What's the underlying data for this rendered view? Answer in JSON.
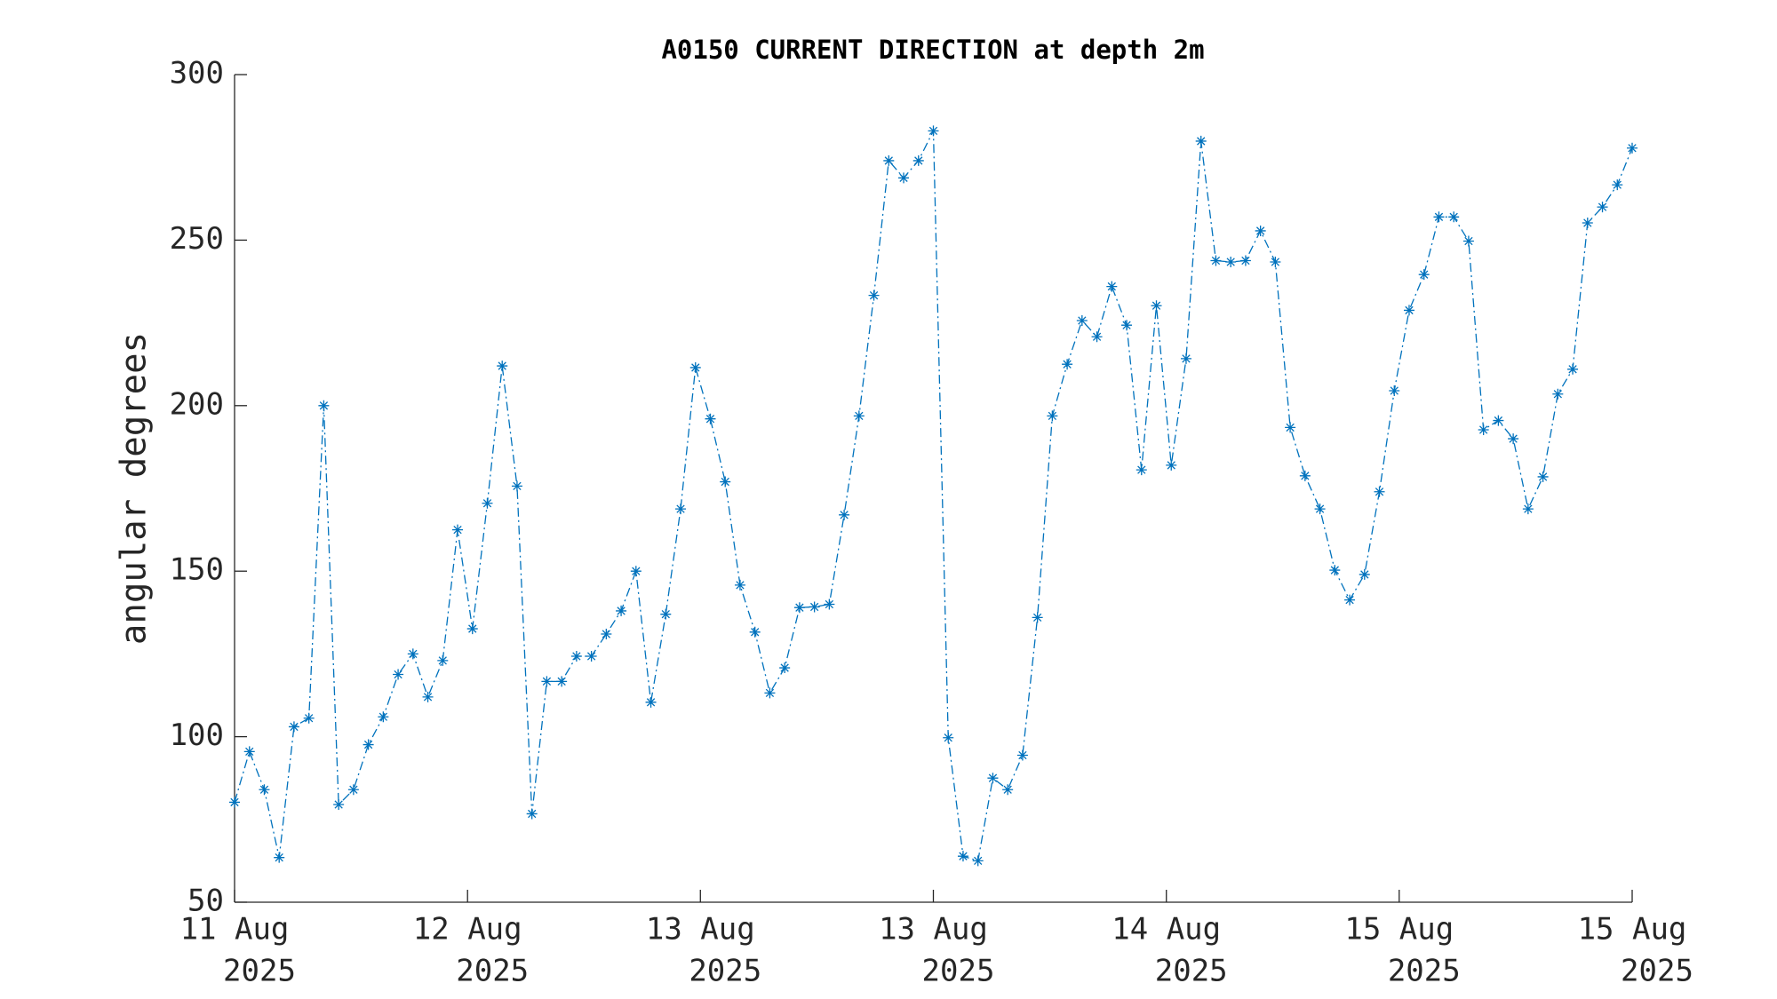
{
  "chart_data": {
    "type": "line",
    "title": "A0150 CURRENT DIRECTION at depth 2m",
    "ylabel": "angular degrees",
    "xlim": [
      0,
      94
    ],
    "xticks": [
      {
        "value": 0,
        "label": [
          "11 Aug",
          "2025"
        ]
      },
      {
        "value": 15.67,
        "label": [
          "12 Aug",
          "2025"
        ]
      },
      {
        "value": 31.33,
        "label": [
          "13 Aug",
          "2025"
        ]
      },
      {
        "value": 47,
        "label": [
          "13 Aug",
          "2025"
        ]
      },
      {
        "value": 62.67,
        "label": [
          "14 Aug",
          "2025"
        ]
      },
      {
        "value": 78.33,
        "label": [
          "15 Aug",
          "2025"
        ]
      },
      {
        "value": 94,
        "label": [
          "15 Aug",
          "2025"
        ]
      }
    ],
    "ylim": [
      50,
      300
    ],
    "yticks": [
      50,
      100,
      150,
      200,
      250,
      300
    ],
    "series": [
      {
        "color": "#0072bd",
        "values": [
          80.2,
          95.5,
          84,
          63.5,
          103,
          105.6,
          200,
          79.5,
          84,
          97.6,
          106,
          118.8,
          125,
          112,
          123,
          162.5,
          132.6,
          170.5,
          212,
          175.7,
          76.7,
          116.7,
          116.7,
          124.3,
          124.3,
          131,
          138,
          150,
          110.4,
          137,
          168.8,
          211.5,
          196,
          177,
          145.8,
          131.6,
          113.2,
          120.8,
          139,
          139.2,
          140,
          167,
          196.9,
          233.3,
          274,
          268.8,
          274,
          283,
          99.7,
          63.9,
          62.5,
          87.5,
          84,
          94.4,
          136,
          196.9,
          212.5,
          225.7,
          220.8,
          236,
          224.3,
          180.6,
          230.2,
          182,
          214.2,
          279.9,
          243.8,
          243.4,
          243.8,
          252.8,
          243.4,
          193.4,
          178.8,
          168.8,
          150.3,
          141.3,
          149,
          174,
          204.5,
          228.8,
          239.6,
          257,
          257,
          249.7,
          192.7,
          195.5,
          190,
          168.8,
          178.5,
          203.5,
          211,
          255.2,
          260,
          266.7,
          277.8
        ]
      }
    ]
  }
}
